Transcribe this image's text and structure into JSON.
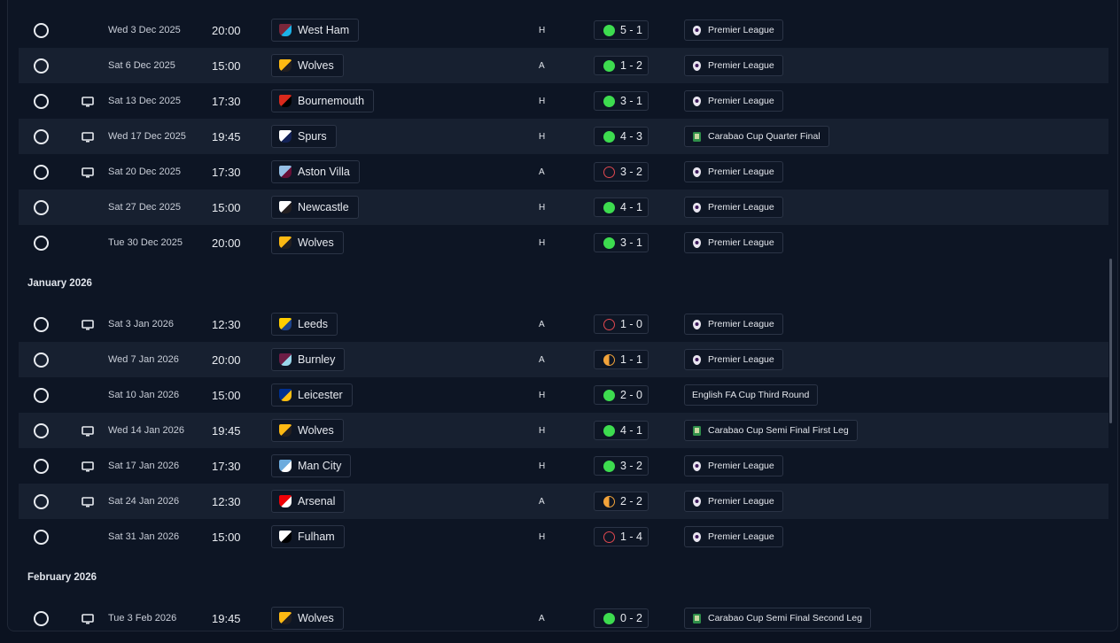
{
  "colors": {
    "win": "#3ddc4f",
    "loss": "#e0484f",
    "draw": "#f2a33a"
  },
  "sections": [
    {
      "month": "",
      "rows": [
        {
          "tv": false,
          "date": "Wed 3 Dec 2025",
          "time": "20:00",
          "team": "West Ham",
          "crest": "west-ham",
          "venue": "H",
          "outcome": "win",
          "score": "5 - 1",
          "competition": "Premier League",
          "comp_icon": "premier-league"
        },
        {
          "tv": false,
          "date": "Sat 6 Dec 2025",
          "time": "15:00",
          "team": "Wolves",
          "crest": "wolves",
          "venue": "A",
          "outcome": "win",
          "score": "1 - 2",
          "competition": "Premier League",
          "comp_icon": "premier-league"
        },
        {
          "tv": true,
          "date": "Sat 13 Dec 2025",
          "time": "17:30",
          "team": "Bournemouth",
          "crest": "bournemouth",
          "venue": "H",
          "outcome": "win",
          "score": "3 - 1",
          "competition": "Premier League",
          "comp_icon": "premier-league"
        },
        {
          "tv": true,
          "date": "Wed 17 Dec 2025",
          "time": "19:45",
          "team": "Spurs",
          "crest": "spurs",
          "venue": "H",
          "outcome": "win",
          "score": "4 - 3",
          "competition": "Carabao Cup Quarter Final",
          "comp_icon": "carabao"
        },
        {
          "tv": true,
          "date": "Sat 20 Dec 2025",
          "time": "17:30",
          "team": "Aston Villa",
          "crest": "villa",
          "venue": "A",
          "outcome": "loss",
          "score": "3 - 2",
          "competition": "Premier League",
          "comp_icon": "premier-league"
        },
        {
          "tv": false,
          "date": "Sat 27 Dec 2025",
          "time": "15:00",
          "team": "Newcastle",
          "crest": "newcastle",
          "venue": "H",
          "outcome": "win",
          "score": "4 - 1",
          "competition": "Premier League",
          "comp_icon": "premier-league"
        },
        {
          "tv": false,
          "date": "Tue 30 Dec 2025",
          "time": "20:00",
          "team": "Wolves",
          "crest": "wolves",
          "venue": "H",
          "outcome": "win",
          "score": "3 - 1",
          "competition": "Premier League",
          "comp_icon": "premier-league"
        }
      ]
    },
    {
      "month": "January 2026",
      "rows": [
        {
          "tv": true,
          "date": "Sat 3 Jan 2026",
          "time": "12:30",
          "team": "Leeds",
          "crest": "leeds",
          "venue": "A",
          "outcome": "loss",
          "score": "1 - 0",
          "competition": "Premier League",
          "comp_icon": "premier-league"
        },
        {
          "tv": false,
          "date": "Wed 7 Jan 2026",
          "time": "20:00",
          "team": "Burnley",
          "crest": "burnley",
          "venue": "A",
          "outcome": "draw",
          "score": "1 - 1",
          "competition": "Premier League",
          "comp_icon": "premier-league"
        },
        {
          "tv": false,
          "date": "Sat 10 Jan 2026",
          "time": "15:00",
          "team": "Leicester",
          "crest": "leicester",
          "venue": "H",
          "outcome": "win",
          "score": "2 - 0",
          "competition": "English FA Cup Third Round",
          "comp_icon": ""
        },
        {
          "tv": true,
          "date": "Wed 14 Jan 2026",
          "time": "19:45",
          "team": "Wolves",
          "crest": "wolves",
          "venue": "H",
          "outcome": "win",
          "score": "4 - 1",
          "competition": "Carabao Cup Semi Final First Leg",
          "comp_icon": "carabao"
        },
        {
          "tv": true,
          "date": "Sat 17 Jan 2026",
          "time": "17:30",
          "team": "Man City",
          "crest": "man-city",
          "venue": "H",
          "outcome": "win",
          "score": "3 - 2",
          "competition": "Premier League",
          "comp_icon": "premier-league"
        },
        {
          "tv": true,
          "date": "Sat 24 Jan 2026",
          "time": "12:30",
          "team": "Arsenal",
          "crest": "arsenal",
          "venue": "A",
          "outcome": "draw",
          "score": "2 - 2",
          "competition": "Premier League",
          "comp_icon": "premier-league"
        },
        {
          "tv": false,
          "date": "Sat 31 Jan 2026",
          "time": "15:00",
          "team": "Fulham",
          "crest": "fulham",
          "venue": "H",
          "outcome": "loss",
          "score": "1 - 4",
          "competition": "Premier League",
          "comp_icon": "premier-league"
        }
      ]
    },
    {
      "month": "February 2026",
      "rows": [
        {
          "tv": true,
          "date": "Tue 3 Feb 2026",
          "time": "19:45",
          "team": "Wolves",
          "crest": "wolves",
          "venue": "A",
          "outcome": "win",
          "score": "0 - 2",
          "competition": "Carabao Cup Semi Final Second Leg",
          "comp_icon": "carabao"
        }
      ]
    }
  ]
}
